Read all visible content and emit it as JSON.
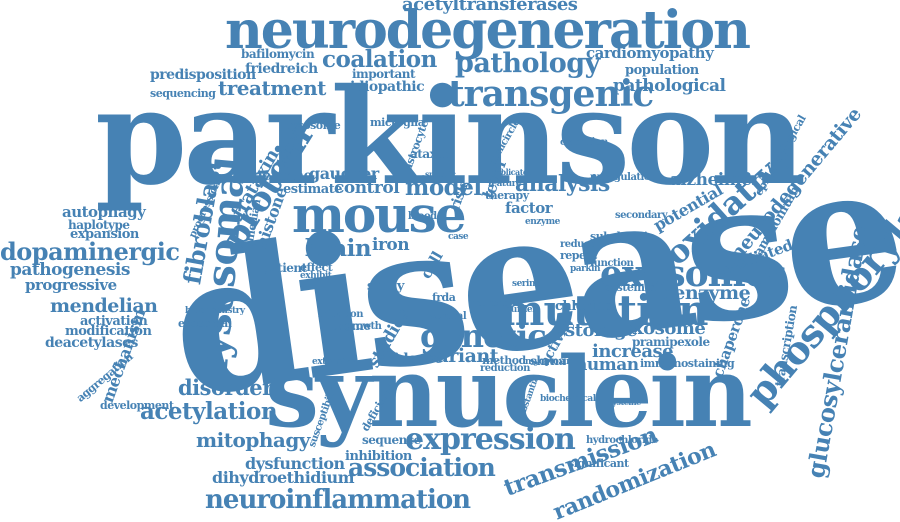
{
  "accent_color": "#4682b4",
  "words": [
    {
      "key": "parkinson",
      "text": "parkinson"
    },
    {
      "key": "disease",
      "text": "disease"
    },
    {
      "key": "synuclein",
      "text": "synuclein"
    },
    {
      "key": "neurodegeneration",
      "text": "neurodegeneration"
    },
    {
      "key": "acetyltransferases",
      "text": "acetyltransferases"
    },
    {
      "key": "pathology",
      "text": "pathology"
    },
    {
      "key": "transgenic",
      "text": "transgenic"
    },
    {
      "key": "coalation",
      "text": "coalation"
    },
    {
      "key": "bafilomycin",
      "text": "bafilomycin"
    },
    {
      "key": "friedreich",
      "text": "friedreich"
    },
    {
      "key": "predisposition",
      "text": "predisposition"
    },
    {
      "key": "treatment",
      "text": "treatment"
    },
    {
      "key": "sequencing",
      "text": "sequencing"
    },
    {
      "key": "important",
      "text": "important"
    },
    {
      "key": "idiopathic",
      "text": "idiopathic"
    },
    {
      "key": "cardiomyopathy",
      "text": "cardiomyopathy"
    },
    {
      "key": "population",
      "text": "population"
    },
    {
      "key": "pathological",
      "text": "pathological"
    },
    {
      "key": "neurodegenerative",
      "text": "neurodegenerative"
    },
    {
      "key": "phosphorylation",
      "text": "phosphorylation"
    },
    {
      "key": "glucosylceramidase",
      "text": "glucosylceramidase"
    },
    {
      "key": "epidemiological",
      "text": "epidemiological"
    },
    {
      "key": "oxidative",
      "text": "oxidative"
    },
    {
      "key": "ammonium",
      "text": "ammonium"
    },
    {
      "key": "alzheimer",
      "text": "alzheimer"
    },
    {
      "key": "potential",
      "text": "potential"
    },
    {
      "key": "exosomes",
      "text": "exosomes"
    },
    {
      "key": "mutation",
      "text": "mutation"
    },
    {
      "key": "coenzyme",
      "text": "coenzyme"
    },
    {
      "key": "mediated",
      "text": "mediated"
    },
    {
      "key": "exosome",
      "text": "exosome"
    },
    {
      "key": "pramipexole",
      "text": "pramipexole"
    },
    {
      "key": "increase",
      "text": "increase"
    },
    {
      "key": "immunostaining",
      "text": "immunostaining"
    },
    {
      "key": "chaperone",
      "text": "chaperone"
    },
    {
      "key": "transcription",
      "text": "transcription"
    },
    {
      "key": "storage",
      "text": "storage"
    },
    {
      "key": "human",
      "text": "human"
    },
    {
      "key": "chloride",
      "text": "chloride"
    },
    {
      "key": "subchronic",
      "text": "subchronic"
    },
    {
      "key": "mouse",
      "text": "mouse"
    },
    {
      "key": "protein",
      "text": "protein"
    },
    {
      "key": "lysosomal",
      "text": "lysosomal"
    },
    {
      "key": "fibroblast",
      "text": "fibroblast"
    },
    {
      "key": "frataxin",
      "text": "frataxin"
    },
    {
      "key": "brain",
      "text": "brain"
    },
    {
      "key": "iron",
      "text": "iron"
    },
    {
      "key": "model",
      "text": "model"
    },
    {
      "key": "analysis",
      "text": "analysis"
    },
    {
      "key": "control",
      "text": "control"
    },
    {
      "key": "estimate",
      "text": "estimate"
    },
    {
      "key": "gaucher",
      "text": "gaucher"
    },
    {
      "key": "genome",
      "text": "genome"
    },
    {
      "key": "ataxia",
      "text": "ataxia"
    },
    {
      "key": "risk",
      "text": "risk"
    },
    {
      "key": "level",
      "text": "level"
    },
    {
      "key": "factor",
      "text": "factor"
    },
    {
      "key": "therapy",
      "text": "therapy"
    },
    {
      "key": "genetic",
      "text": "genetic"
    },
    {
      "key": "variant",
      "text": "variant"
    },
    {
      "key": "evidence",
      "text": "evidence"
    },
    {
      "key": "studies",
      "text": "studies"
    },
    {
      "key": "activity",
      "text": "activity"
    },
    {
      "key": "shrna",
      "text": "shrna"
    },
    {
      "key": "dopaminergic",
      "text": "dopaminergic"
    },
    {
      "key": "pathogenesis",
      "text": "pathogenesis"
    },
    {
      "key": "progressive",
      "text": "progressive"
    },
    {
      "key": "mendelian",
      "text": "mendelian"
    },
    {
      "key": "autophagy",
      "text": "autophagy"
    },
    {
      "key": "haplotype",
      "text": "haplotype"
    },
    {
      "key": "expansion",
      "text": "expansion"
    },
    {
      "key": "activation",
      "text": "activation"
    },
    {
      "key": "modification",
      "text": "modification"
    },
    {
      "key": "deacetylases",
      "text": "deacetylases"
    },
    {
      "key": "mechanism",
      "text": "mechanism"
    },
    {
      "key": "aggregation",
      "text": "aggregation"
    },
    {
      "key": "development",
      "text": "development"
    },
    {
      "key": "disorder",
      "text": "disorder"
    },
    {
      "key": "acetylation",
      "text": "acetylation"
    },
    {
      "key": "mitophagy",
      "text": "mitophagy"
    },
    {
      "key": "dysfunction",
      "text": "dysfunction"
    },
    {
      "key": "dihydroethidium",
      "text": "dihydroethidium"
    },
    {
      "key": "neuroinflammation",
      "text": "neuroinflammation"
    },
    {
      "key": "expression",
      "text": "expression"
    },
    {
      "key": "association",
      "text": "association"
    },
    {
      "key": "transmission",
      "text": "transmission"
    },
    {
      "key": "randomization",
      "text": "randomization"
    },
    {
      "key": "inhibition",
      "text": "inhibition"
    },
    {
      "key": "sequence",
      "text": "sequence"
    },
    {
      "key": "significant",
      "text": "significant"
    },
    {
      "key": "hydrochloride",
      "text": "hydrochloride"
    },
    {
      "key": "histone",
      "text": "histone"
    },
    {
      "key": "patient",
      "text": "patient"
    },
    {
      "key": "effect",
      "text": "effect"
    },
    {
      "key": "study",
      "text": "study"
    },
    {
      "key": "exome",
      "text": "exome"
    },
    {
      "key": "injection",
      "text": "injection"
    },
    {
      "key": "lysosome",
      "text": "lysosome"
    },
    {
      "key": "microglia",
      "text": "microglia"
    },
    {
      "key": "delivery",
      "text": "delivery"
    },
    {
      "key": "minicircle",
      "text": "minicircle"
    },
    {
      "key": "astrocyte",
      "text": "astrocyte"
    },
    {
      "key": "cell",
      "text": "cell"
    },
    {
      "key": "exosomal",
      "text": "exosomal"
    },
    {
      "key": "biochemistry",
      "text": "biochemistry"
    },
    {
      "key": "progression",
      "text": "progression"
    },
    {
      "key": "median",
      "text": "median"
    },
    {
      "key": "susceptibility",
      "text": "susceptibility"
    },
    {
      "key": "deficiency",
      "text": "deficiency"
    },
    {
      "key": "frda",
      "text": "frda"
    },
    {
      "key": "several",
      "text": "several"
    },
    {
      "key": "reduce",
      "text": "reduce"
    },
    {
      "key": "repeat",
      "text": "repeat"
    },
    {
      "key": "mycotoxin",
      "text": "mycotoxin"
    },
    {
      "key": "systemic",
      "text": "systemic"
    },
    {
      "key": "secondary",
      "text": "secondary"
    },
    {
      "key": "upregulation",
      "text": "upregulation"
    },
    {
      "key": "oxidation",
      "text": "oxidation"
    },
    {
      "key": "function",
      "text": "function"
    },
    {
      "key": "method",
      "text": "method"
    },
    {
      "key": "reduction",
      "text": "reduction"
    },
    {
      "key": "extensive",
      "text": "extensive"
    },
    {
      "key": "growth",
      "text": "growth"
    },
    {
      "key": "blood",
      "text": "blood"
    },
    {
      "key": "exhibit",
      "text": "exhibit"
    },
    {
      "key": "case",
      "text": "case"
    },
    {
      "key": "feature",
      "text": "feature"
    },
    {
      "key": "specific",
      "text": "specific"
    },
    {
      "key": "implicated",
      "text": "implicated"
    },
    {
      "key": "serine",
      "text": "serine"
    },
    {
      "key": "parkin",
      "text": "parkin"
    },
    {
      "key": "cysteine",
      "text": "cysteine"
    },
    {
      "key": "biochemical",
      "text": "biochemical"
    },
    {
      "key": "substantia",
      "text": "substantia"
    },
    {
      "key": "burden",
      "text": "burden"
    },
    {
      "key": "neuronal",
      "text": "neuronal"
    },
    {
      "key": "enzyme",
      "text": "enzyme"
    }
  ]
}
